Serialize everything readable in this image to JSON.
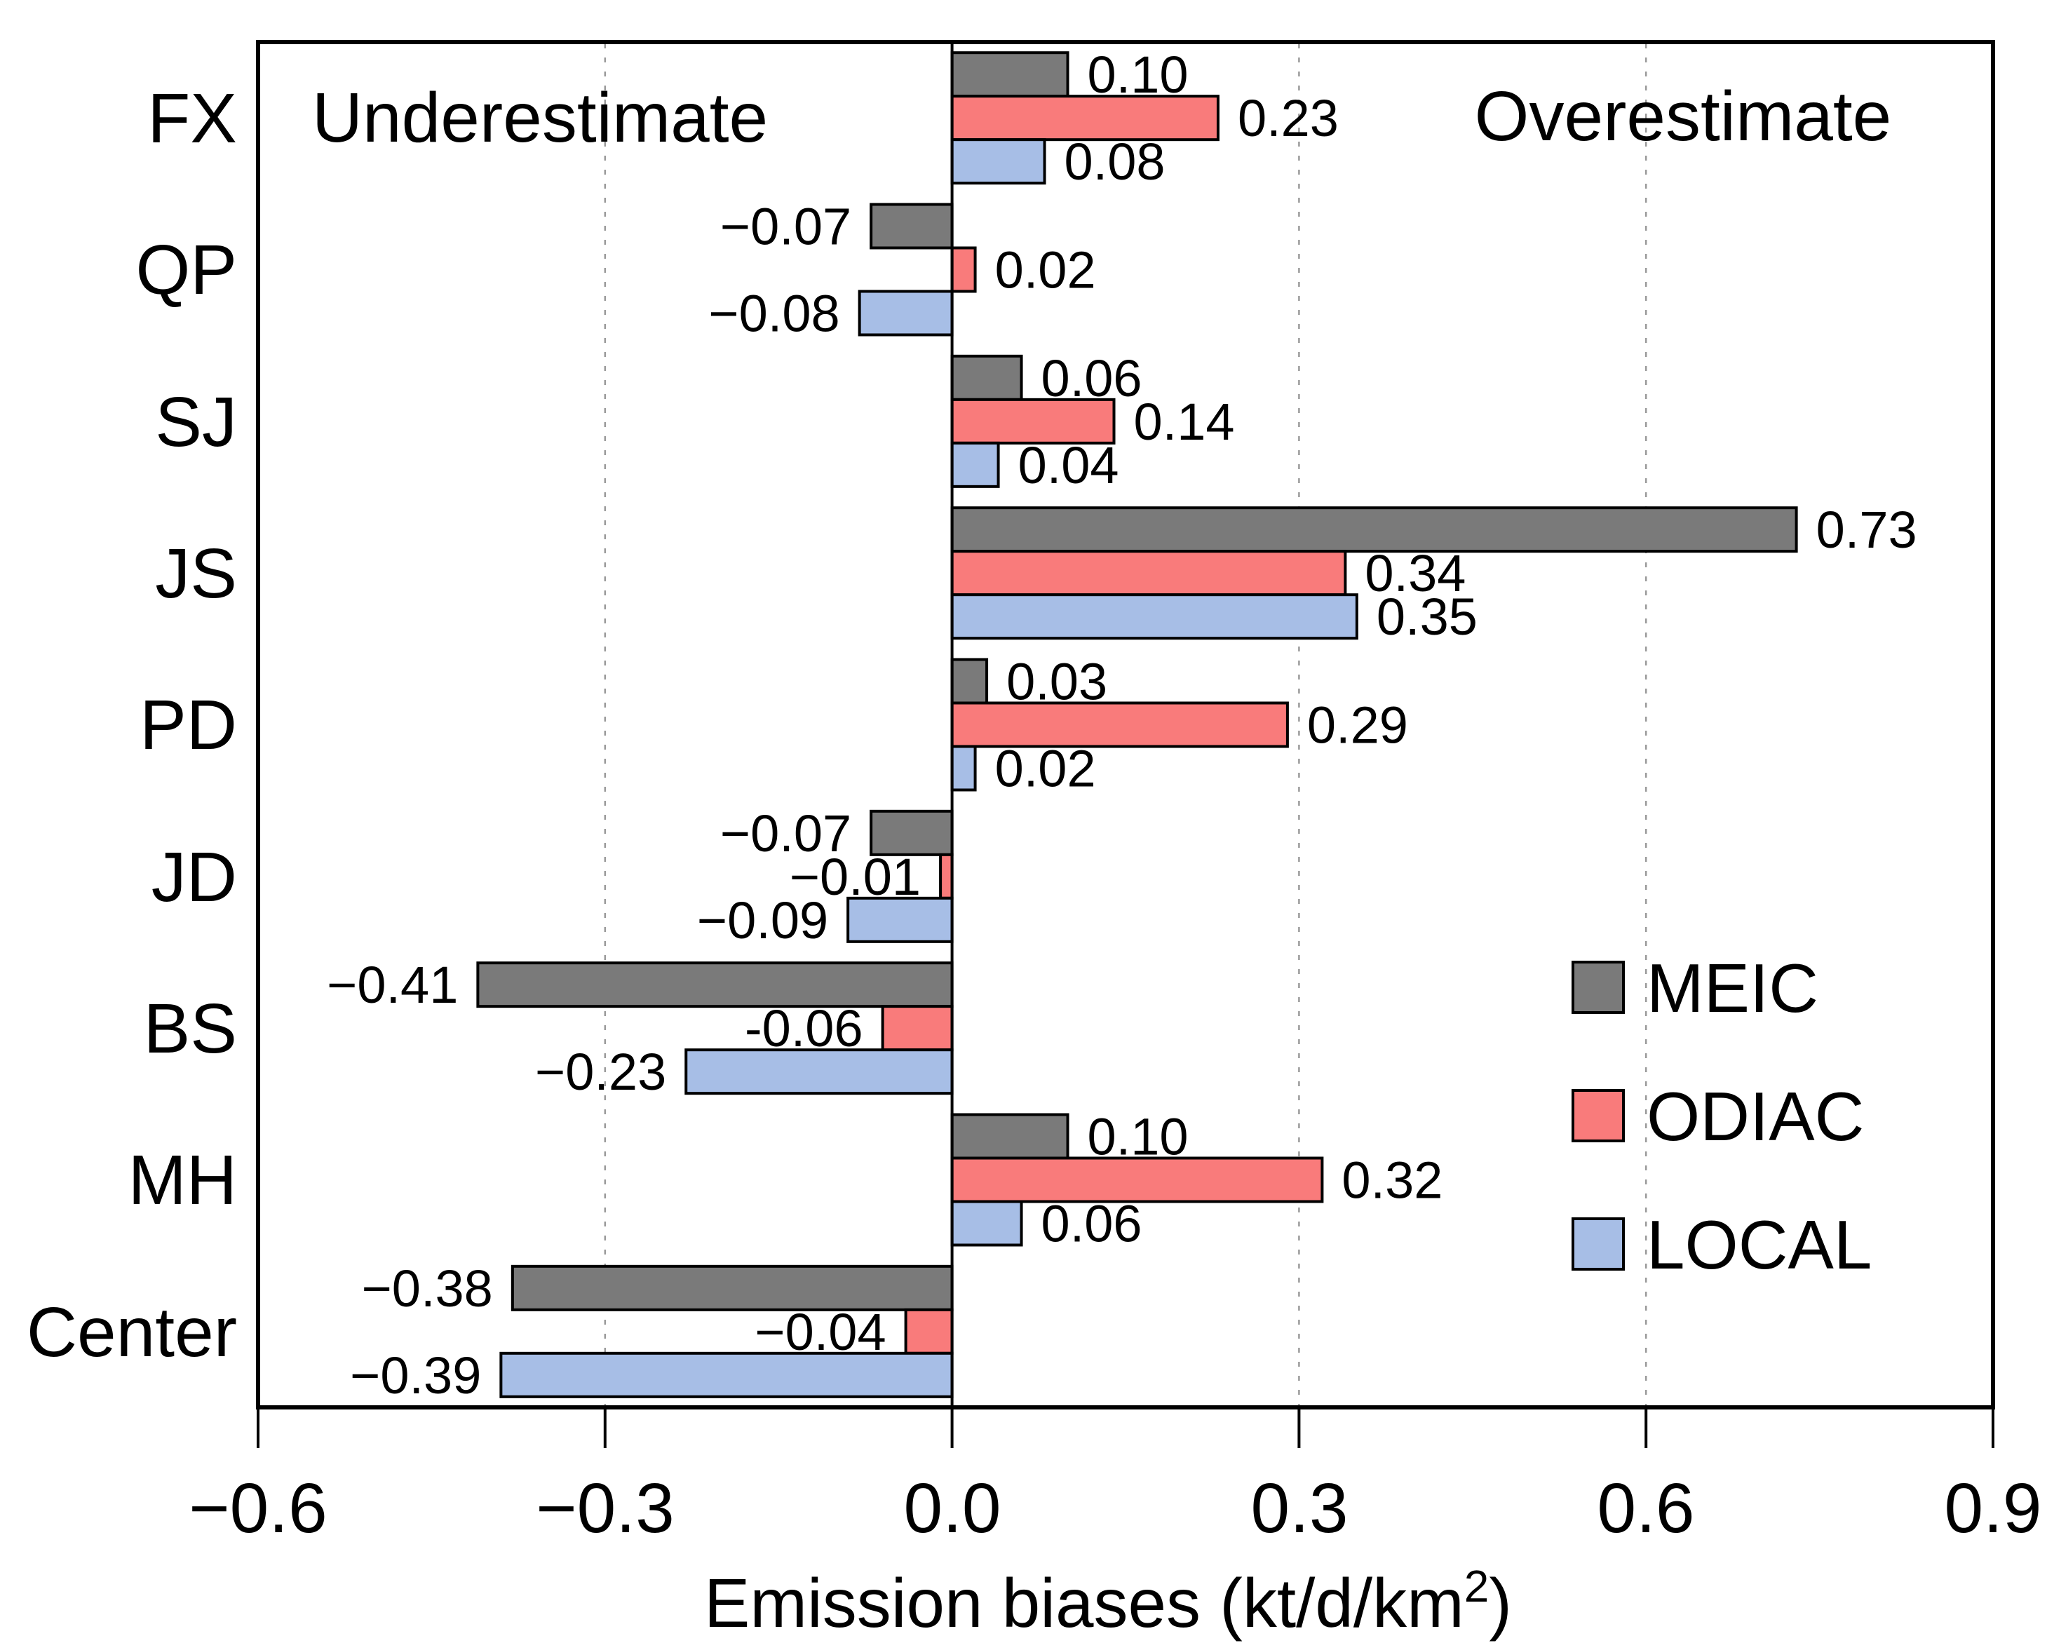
{
  "figure": {
    "xlabel_parts": [
      "Emission biases (kt/d/km",
      "2",
      ")"
    ]
  },
  "chart_data": {
    "type": "bar",
    "orientation": "horizontal",
    "title": "",
    "xlabel": "Emission biases (kt/d/km²)",
    "ylabel": "",
    "categories": [
      "FX",
      "QP",
      "SJ",
      "JS",
      "PD",
      "JD",
      "BS",
      "MH",
      "Center"
    ],
    "series": [
      {
        "name": "MEIC",
        "color": "#7a7a7a",
        "values": [
          0.1,
          -0.07,
          0.06,
          0.73,
          0.03,
          -0.07,
          -0.41,
          0.1,
          -0.38
        ],
        "labels": [
          "0.10",
          "−0.07",
          "0.06",
          "0.73",
          "0.03",
          "−0.07",
          "−0.41",
          "0.10",
          "−0.38"
        ]
      },
      {
        "name": "ODIAC",
        "color": "#f97b7b",
        "values": [
          0.23,
          0.02,
          0.14,
          0.34,
          0.29,
          -0.01,
          -0.06,
          0.32,
          -0.04
        ],
        "labels": [
          "0.23",
          "0.02",
          "0.14",
          "0.34",
          "0.29",
          "−0.01",
          "-0.06",
          "0.32",
          "−0.04"
        ]
      },
      {
        "name": "LOCAL",
        "color": "#a7bee6",
        "values": [
          0.08,
          -0.08,
          0.04,
          0.35,
          0.02,
          -0.09,
          -0.23,
          0.06,
          -0.39
        ],
        "labels": [
          "0.08",
          "−0.08",
          "0.04",
          "0.35",
          "0.02",
          "−0.09",
          "−0.23",
          "0.06",
          "−0.39"
        ]
      }
    ],
    "xlim": [
      -0.6,
      0.9
    ],
    "xticks": [
      -0.6,
      -0.3,
      0.0,
      0.3,
      0.6,
      0.9
    ],
    "xtick_labels": [
      "−0.6",
      "−0.3",
      "0.0",
      "0.3",
      "0.6",
      "0.9"
    ],
    "gridlines_at": [
      -0.3,
      0.3,
      0.6
    ],
    "grid_style": "dotted-vertical",
    "legend_position": "inside-right",
    "annotations": {
      "left": "Underestimate",
      "right": "Overestimate"
    },
    "bar_edge_color": "#000000",
    "axis_color": "#000000",
    "grid_color": "#9a9a9a"
  }
}
